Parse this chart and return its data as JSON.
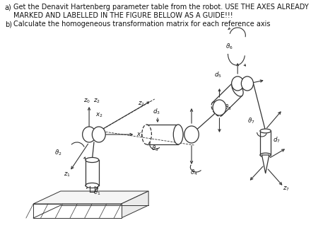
{
  "title_lines": [
    [
      "a)",
      "Get the Denavit Hartenberg parameter table from the robot. USE THE AXES ALREADY"
    ],
    [
      "",
      "MARKED AND LABELLED IN THE FIGURE BELLOW AS A GUIDE!!!"
    ],
    [
      "b)",
      "Calculate the homogeneous transformation matrix for each reference axis"
    ]
  ],
  "bg_color": "#ffffff",
  "line_color": "#333333",
  "text_color": "#111111",
  "title_fontsize": 7.0,
  "label_fontsize": 6.2,
  "fig_w": 4.74,
  "fig_h": 3.32,
  "dpi": 100
}
